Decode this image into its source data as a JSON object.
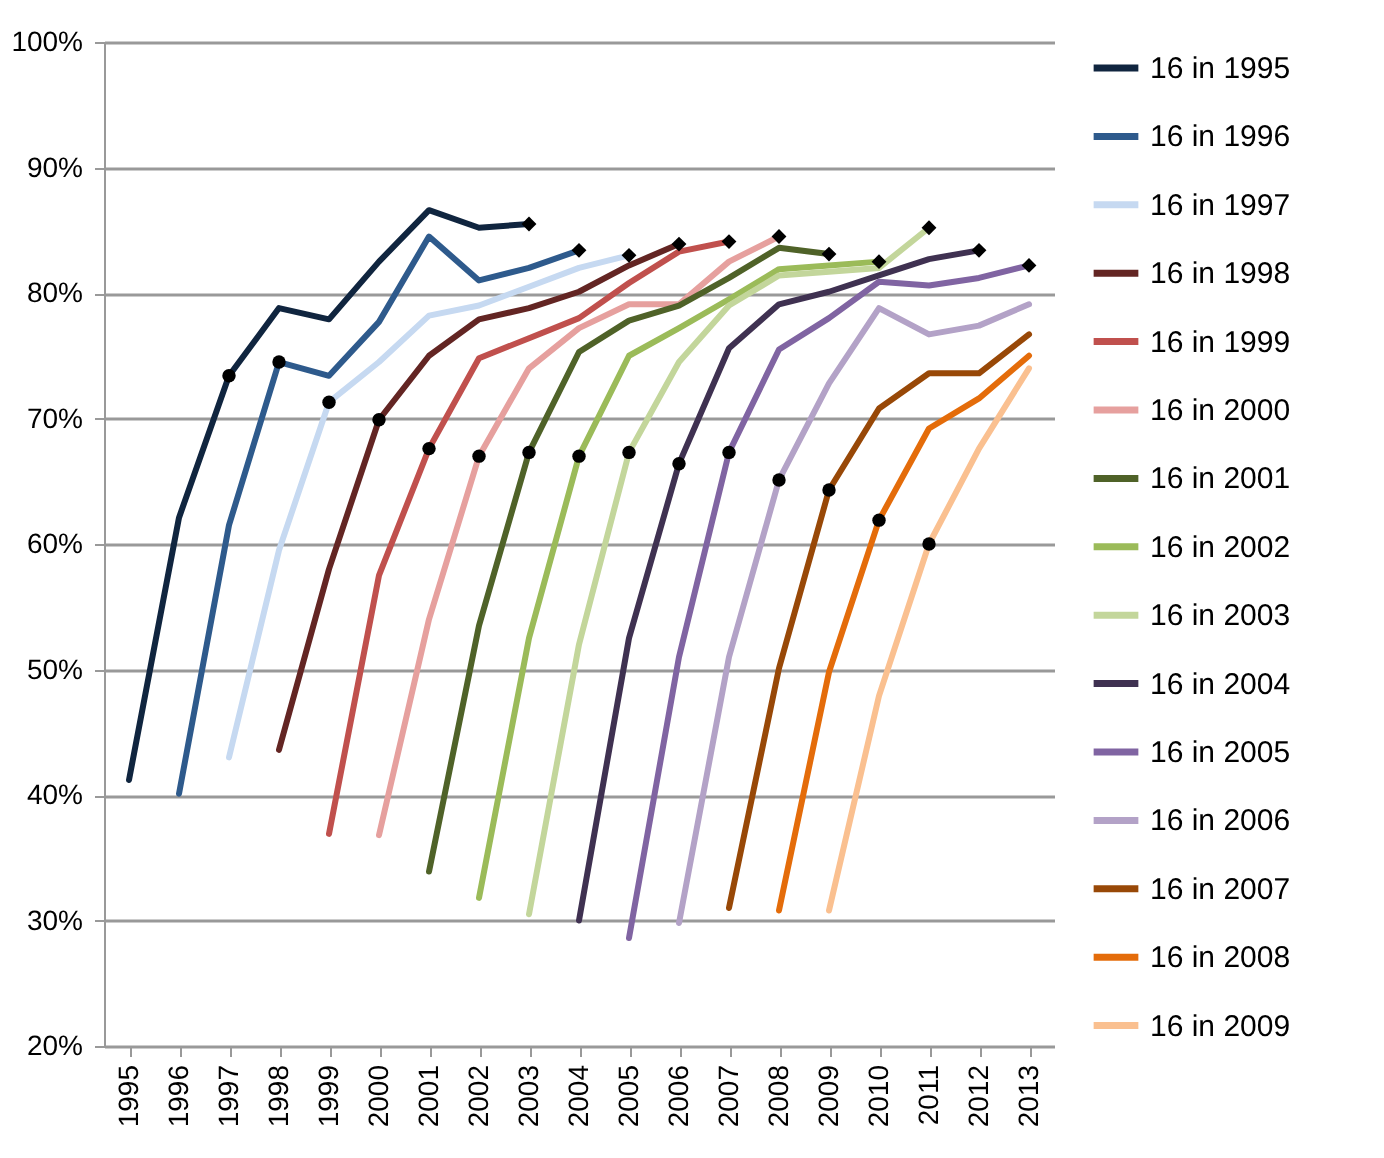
{
  "chart_data": {
    "type": "line",
    "categories": [
      "1995",
      "1996",
      "1997",
      "1998",
      "1999",
      "2000",
      "2001",
      "2002",
      "2003",
      "2004",
      "2005",
      "2006",
      "2007",
      "2008",
      "2009",
      "2010",
      "2011",
      "2012",
      "2013"
    ],
    "ylim": [
      20,
      100
    ],
    "yticks": [
      {
        "value": 20,
        "label": "20%"
      },
      {
        "value": 30,
        "label": "30%"
      },
      {
        "value": 40,
        "label": "40%"
      },
      {
        "value": 50,
        "label": "50%"
      },
      {
        "value": 60,
        "label": "60%"
      },
      {
        "value": 70,
        "label": "70%"
      },
      {
        "value": 80,
        "label": "80%"
      },
      {
        "value": 90,
        "label": "90%"
      },
      {
        "value": 100,
        "label": "100%"
      }
    ],
    "grid": "y",
    "legend": "right",
    "line_style": "solid",
    "marker": "none",
    "series": [
      {
        "name": "16 in 1995",
        "color": "#10253f",
        "values": [
          41.2,
          62.1,
          73.4,
          78.8,
          77.9,
          82.5,
          86.6,
          85.2,
          85.5,
          null,
          null,
          null,
          null,
          null,
          null,
          null,
          null,
          null,
          null
        ]
      },
      {
        "name": "16 in 1996",
        "color": "#2e5a8c",
        "values": [
          null,
          40.1,
          61.5,
          74.5,
          73.4,
          77.7,
          84.5,
          81.0,
          82.0,
          83.4,
          null,
          null,
          null,
          null,
          null,
          null,
          null,
          null,
          null
        ]
      },
      {
        "name": "16 in 1997",
        "color": "#c6d9f1",
        "values": [
          null,
          null,
          43.0,
          59.5,
          71.3,
          74.5,
          78.2,
          79.0,
          80.5,
          82.0,
          83.0,
          null,
          null,
          null,
          null,
          null,
          null,
          null,
          null
        ]
      },
      {
        "name": "16 in 1998",
        "color": "#632523",
        "values": [
          null,
          null,
          null,
          43.6,
          58.0,
          69.9,
          75.0,
          77.9,
          78.8,
          80.1,
          82.2,
          83.9,
          null,
          null,
          null,
          null,
          null,
          null,
          null
        ]
      },
      {
        "name": "16 in 1999",
        "color": "#c0504d",
        "values": [
          null,
          null,
          null,
          null,
          36.9,
          57.5,
          67.6,
          74.8,
          76.4,
          78.0,
          80.8,
          83.3,
          84.1,
          null,
          null,
          null,
          null,
          null,
          null
        ]
      },
      {
        "name": "16 in 2000",
        "color": "#e6a09e",
        "values": [
          null,
          null,
          null,
          null,
          null,
          36.8,
          54.0,
          67.0,
          74.0,
          77.2,
          79.1,
          79.1,
          82.5,
          84.5,
          null,
          null,
          null,
          null,
          null
        ]
      },
      {
        "name": "16 in 2001",
        "color": "#4f6228",
        "values": [
          null,
          null,
          null,
          null,
          null,
          null,
          33.9,
          53.5,
          67.3,
          75.3,
          77.8,
          79.0,
          81.2,
          83.6,
          83.1,
          null,
          null,
          null,
          null
        ]
      },
      {
        "name": "16 in 2002",
        "color": "#9bbb59",
        "values": [
          null,
          null,
          null,
          null,
          null,
          null,
          null,
          31.8,
          52.5,
          67.0,
          75.0,
          77.2,
          79.5,
          81.9,
          82.2,
          82.5,
          null,
          null,
          null
        ]
      },
      {
        "name": "16 in 2003",
        "color": "#c3d69b",
        "values": [
          null,
          null,
          null,
          null,
          null,
          null,
          null,
          null,
          30.5,
          52.0,
          67.3,
          74.5,
          79.0,
          81.4,
          81.7,
          82.0,
          85.2,
          null,
          null
        ]
      },
      {
        "name": "16 in 2004",
        "color": "#3f3151",
        "values": [
          null,
          null,
          null,
          null,
          null,
          null,
          null,
          null,
          null,
          30.0,
          52.5,
          66.4,
          75.6,
          79.1,
          80.1,
          81.4,
          82.7,
          83.4,
          null
        ]
      },
      {
        "name": "16 in 2005",
        "color": "#8064a2",
        "values": [
          null,
          null,
          null,
          null,
          null,
          null,
          null,
          null,
          null,
          null,
          28.6,
          51.0,
          67.3,
          75.5,
          78.0,
          80.9,
          80.6,
          81.2,
          82.2
        ]
      },
      {
        "name": "16 in 2006",
        "color": "#b3a2c7",
        "values": [
          null,
          null,
          null,
          null,
          null,
          null,
          null,
          null,
          null,
          null,
          null,
          29.8,
          51.0,
          65.1,
          72.8,
          78.8,
          76.7,
          77.4,
          79.1
        ]
      },
      {
        "name": "16 in 2007",
        "color": "#984807",
        "values": [
          null,
          null,
          null,
          null,
          null,
          null,
          null,
          null,
          null,
          null,
          null,
          null,
          31.0,
          50.1,
          64.3,
          70.8,
          73.6,
          73.6,
          76.7
        ]
      },
      {
        "name": "16 in 2008",
        "color": "#e46c0a",
        "values": [
          null,
          null,
          null,
          null,
          null,
          null,
          null,
          null,
          null,
          null,
          null,
          null,
          null,
          30.8,
          49.8,
          61.9,
          69.2,
          71.6,
          75.0
        ]
      },
      {
        "name": "16 in 2009",
        "color": "#fac090",
        "values": [
          null,
          null,
          null,
          null,
          null,
          null,
          null,
          null,
          null,
          null,
          null,
          null,
          null,
          null,
          30.8,
          47.9,
          60.0,
          67.6,
          74.0
        ]
      },
      {
        "type": "scatter",
        "marker": "circle",
        "color": "#000000",
        "values": [
          null,
          null,
          73.4,
          74.5,
          71.3,
          69.9,
          67.6,
          67.0,
          67.3,
          67.0,
          67.3,
          66.4,
          67.3,
          65.1,
          64.3,
          61.9,
          60.0,
          null,
          null
        ]
      },
      {
        "type": "scatter",
        "marker": "diamond",
        "color": "#000000",
        "values": [
          null,
          null,
          null,
          null,
          null,
          null,
          null,
          null,
          85.5,
          83.4,
          83.0,
          83.9,
          84.1,
          84.5,
          83.1,
          82.5,
          85.2,
          83.4,
          82.2
        ]
      }
    ]
  }
}
